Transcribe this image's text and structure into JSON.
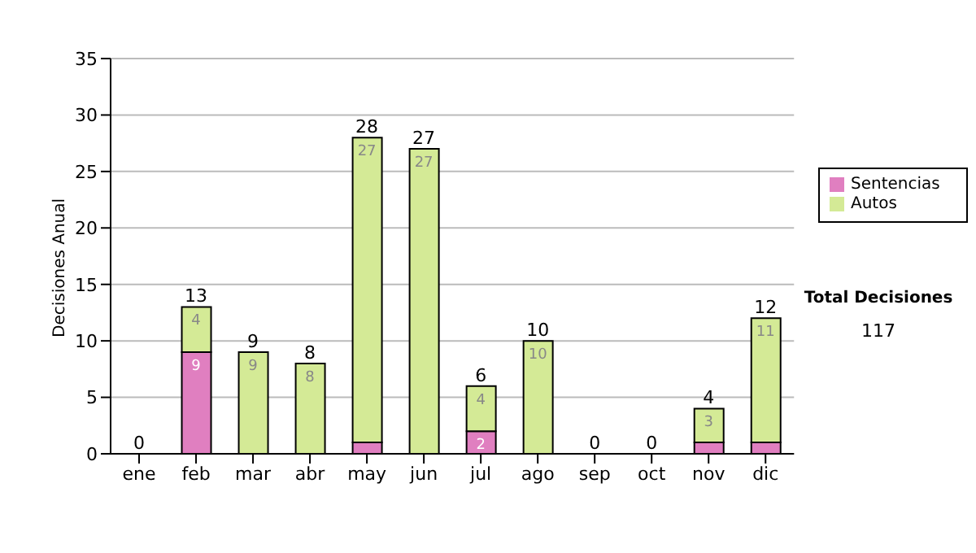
{
  "chart_data": {
    "type": "bar",
    "stacked": true,
    "ylabel": "Decisiones Anual",
    "categories": [
      "ene",
      "feb",
      "mar",
      "abr",
      "may",
      "jun",
      "jul",
      "ago",
      "sep",
      "oct",
      "nov",
      "dic"
    ],
    "series": [
      {
        "name": "Sentencias",
        "color": "#e07fc0",
        "values": [
          0,
          9,
          0,
          0,
          1,
          0,
          2,
          0,
          0,
          0,
          1,
          1
        ],
        "value_labels": [
          null,
          "9",
          null,
          null,
          null,
          null,
          "2",
          null,
          null,
          null,
          null,
          null
        ]
      },
      {
        "name": "Autos",
        "color": "#d4ea96",
        "values": [
          0,
          4,
          9,
          8,
          27,
          27,
          4,
          10,
          0,
          0,
          3,
          11
        ],
        "value_labels": [
          null,
          "4",
          "9",
          "8",
          "27",
          "27",
          "4",
          "10",
          null,
          null,
          "3",
          "11"
        ]
      }
    ],
    "totals": [
      "0",
      "13",
      "9",
      "8",
      "28",
      "27",
      "6",
      "10",
      "0",
      "0",
      "4",
      "12"
    ],
    "ylim": [
      0,
      35
    ],
    "yticks": [
      0,
      5,
      10,
      15,
      20,
      25,
      30,
      35
    ],
    "grid": "y",
    "legend": "right",
    "annotations": [
      "Total Decisiones",
      "117"
    ]
  }
}
